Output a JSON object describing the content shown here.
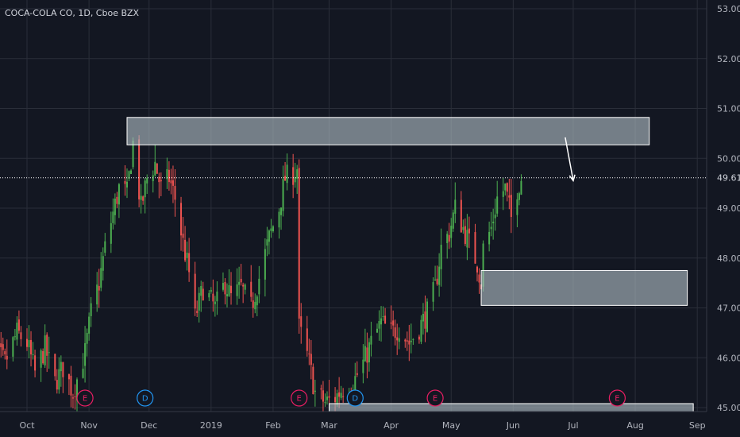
{
  "header": {
    "title": "COCA-COLA CO, 1D, Cboe BZX"
  },
  "colors": {
    "background": "#131722",
    "grid": "#2a2e39",
    "up": "#26a69a",
    "up_body": "#4caf50",
    "down": "#ef5350",
    "zone_fill": "#b0bec5",
    "zone_stroke": "#ffffff",
    "price_line": "#ffffff",
    "earnings": "#e91e63",
    "dividend": "#2196f3"
  },
  "chart_data": {
    "type": "candlestick",
    "title": "COCA-COLA CO, 1D, Cboe BZX",
    "ylim": [
      44.9,
      53.2
    ],
    "y_ticks": [
      "53.00",
      "52.00",
      "51.00",
      "50.00",
      "49.00",
      "48.00",
      "47.00",
      "46.00",
      "45.00"
    ],
    "x_ticks": [
      "Oct",
      "Nov",
      "Dec",
      "2019",
      "Feb",
      "Mar",
      "Apr",
      "May",
      "Jun",
      "Jul",
      "Aug",
      "Sep"
    ],
    "x_tick_dates": [
      "2018-10-01",
      "2018-11-01",
      "2018-12-01",
      "2019-01-01",
      "2019-02-01",
      "2019-03-01",
      "2019-04-01",
      "2019-05-01",
      "2019-06-01",
      "2019-07-01",
      "2019-08-01",
      "2019-09-01"
    ],
    "last_price": 49.61,
    "last_price_label": "49.61",
    "grid": true,
    "price_path": [
      [
        "2018-09-10",
        46.5
      ],
      [
        "2018-09-14",
        46.2
      ],
      [
        "2018-09-20",
        45.9
      ],
      [
        "2018-09-26",
        46.5
      ],
      [
        "2018-10-01",
        46.3
      ],
      [
        "2018-10-05",
        45.7
      ],
      [
        "2018-10-10",
        46.2
      ],
      [
        "2018-10-15",
        45.5
      ],
      [
        "2018-10-19",
        45.8
      ],
      [
        "2018-10-24",
        45.3
      ],
      [
        "2018-10-30",
        46.1
      ],
      [
        "2018-11-02",
        46.9
      ],
      [
        "2018-11-06",
        47.5
      ],
      [
        "2018-11-09",
        48.2
      ],
      [
        "2018-11-13",
        48.9
      ],
      [
        "2018-11-16",
        49.4
      ],
      [
        "2018-11-20",
        49.3
      ],
      [
        "2018-11-23",
        50.3
      ],
      [
        "2018-11-27",
        49.0
      ],
      [
        "2018-11-30",
        49.6
      ],
      [
        "2018-12-04",
        49.9
      ],
      [
        "2018-12-07",
        49.4
      ],
      [
        "2018-12-11",
        49.6
      ],
      [
        "2018-12-14",
        49.2
      ],
      [
        "2018-12-18",
        48.3
      ],
      [
        "2018-12-21",
        47.7
      ],
      [
        "2018-12-24",
        46.8
      ],
      [
        "2018-12-28",
        47.4
      ],
      [
        "2019-01-03",
        47.0
      ],
      [
        "2019-01-08",
        47.5
      ],
      [
        "2019-01-11",
        47.2
      ],
      [
        "2019-01-16",
        47.4
      ],
      [
        "2019-01-21",
        47.0
      ],
      [
        "2019-01-25",
        47.6
      ],
      [
        "2019-01-30",
        48.4
      ],
      [
        "2019-02-04",
        49.0
      ],
      [
        "2019-02-07",
        49.6
      ],
      [
        "2019-02-11",
        49.7
      ],
      [
        "2019-02-13",
        49.8
      ],
      [
        "2019-02-14",
        46.6
      ],
      [
        "2019-02-19",
        45.9
      ],
      [
        "2019-02-22",
        45.3
      ],
      [
        "2019-02-27",
        45.1
      ],
      [
        "2019-03-04",
        45.2
      ],
      [
        "2019-03-08",
        45.4
      ],
      [
        "2019-03-13",
        45.5
      ],
      [
        "2019-03-18",
        45.9
      ],
      [
        "2019-03-22",
        46.3
      ],
      [
        "2019-03-27",
        46.7
      ],
      [
        "2019-04-01",
        46.5
      ],
      [
        "2019-04-05",
        46.6
      ],
      [
        "2019-04-10",
        46.3
      ],
      [
        "2019-04-15",
        46.6
      ],
      [
        "2019-04-19",
        46.9
      ],
      [
        "2019-04-23",
        47.4
      ],
      [
        "2019-04-26",
        48.2
      ],
      [
        "2019-04-30",
        48.5
      ],
      [
        "2019-05-03",
        49.0
      ],
      [
        "2019-05-07",
        48.6
      ],
      [
        "2019-05-10",
        48.3
      ],
      [
        "2019-05-14",
        47.9
      ],
      [
        "2019-05-16",
        47.5
      ],
      [
        "2019-05-17",
        48.2
      ],
      [
        "2019-05-21",
        48.6
      ],
      [
        "2019-05-24",
        49.2
      ],
      [
        "2019-05-28",
        49.4
      ],
      [
        "2019-05-31",
        48.8
      ],
      [
        "2019-06-03",
        49.4
      ],
      [
        "2019-06-05",
        49.61
      ]
    ],
    "zones": [
      {
        "start": "2018-11-20",
        "end": "2019-08-08",
        "top": 50.82,
        "bottom": 50.27
      },
      {
        "start": "2019-05-16",
        "end": "2019-08-27",
        "top": 47.75,
        "bottom": 47.05
      },
      {
        "start": "2019-03-01",
        "end": "2019-08-30",
        "top": 45.08,
        "bottom": 44.92
      }
    ],
    "arrow": {
      "from": {
        "date": "2019-06-27",
        "price": 50.42
      },
      "to": {
        "date": "2019-07-01",
        "price": 49.55
      }
    },
    "events": [
      {
        "letter": "E",
        "date": "2018-10-30",
        "kind": "earnings"
      },
      {
        "letter": "D",
        "date": "2018-11-29",
        "kind": "dividend"
      },
      {
        "letter": "E",
        "date": "2019-02-14",
        "kind": "earnings"
      },
      {
        "letter": "D",
        "date": "2019-03-14",
        "kind": "dividend"
      },
      {
        "letter": "E",
        "date": "2019-04-23",
        "kind": "earnings"
      },
      {
        "letter": "E",
        "date": "2019-07-23",
        "kind": "earnings"
      }
    ]
  }
}
